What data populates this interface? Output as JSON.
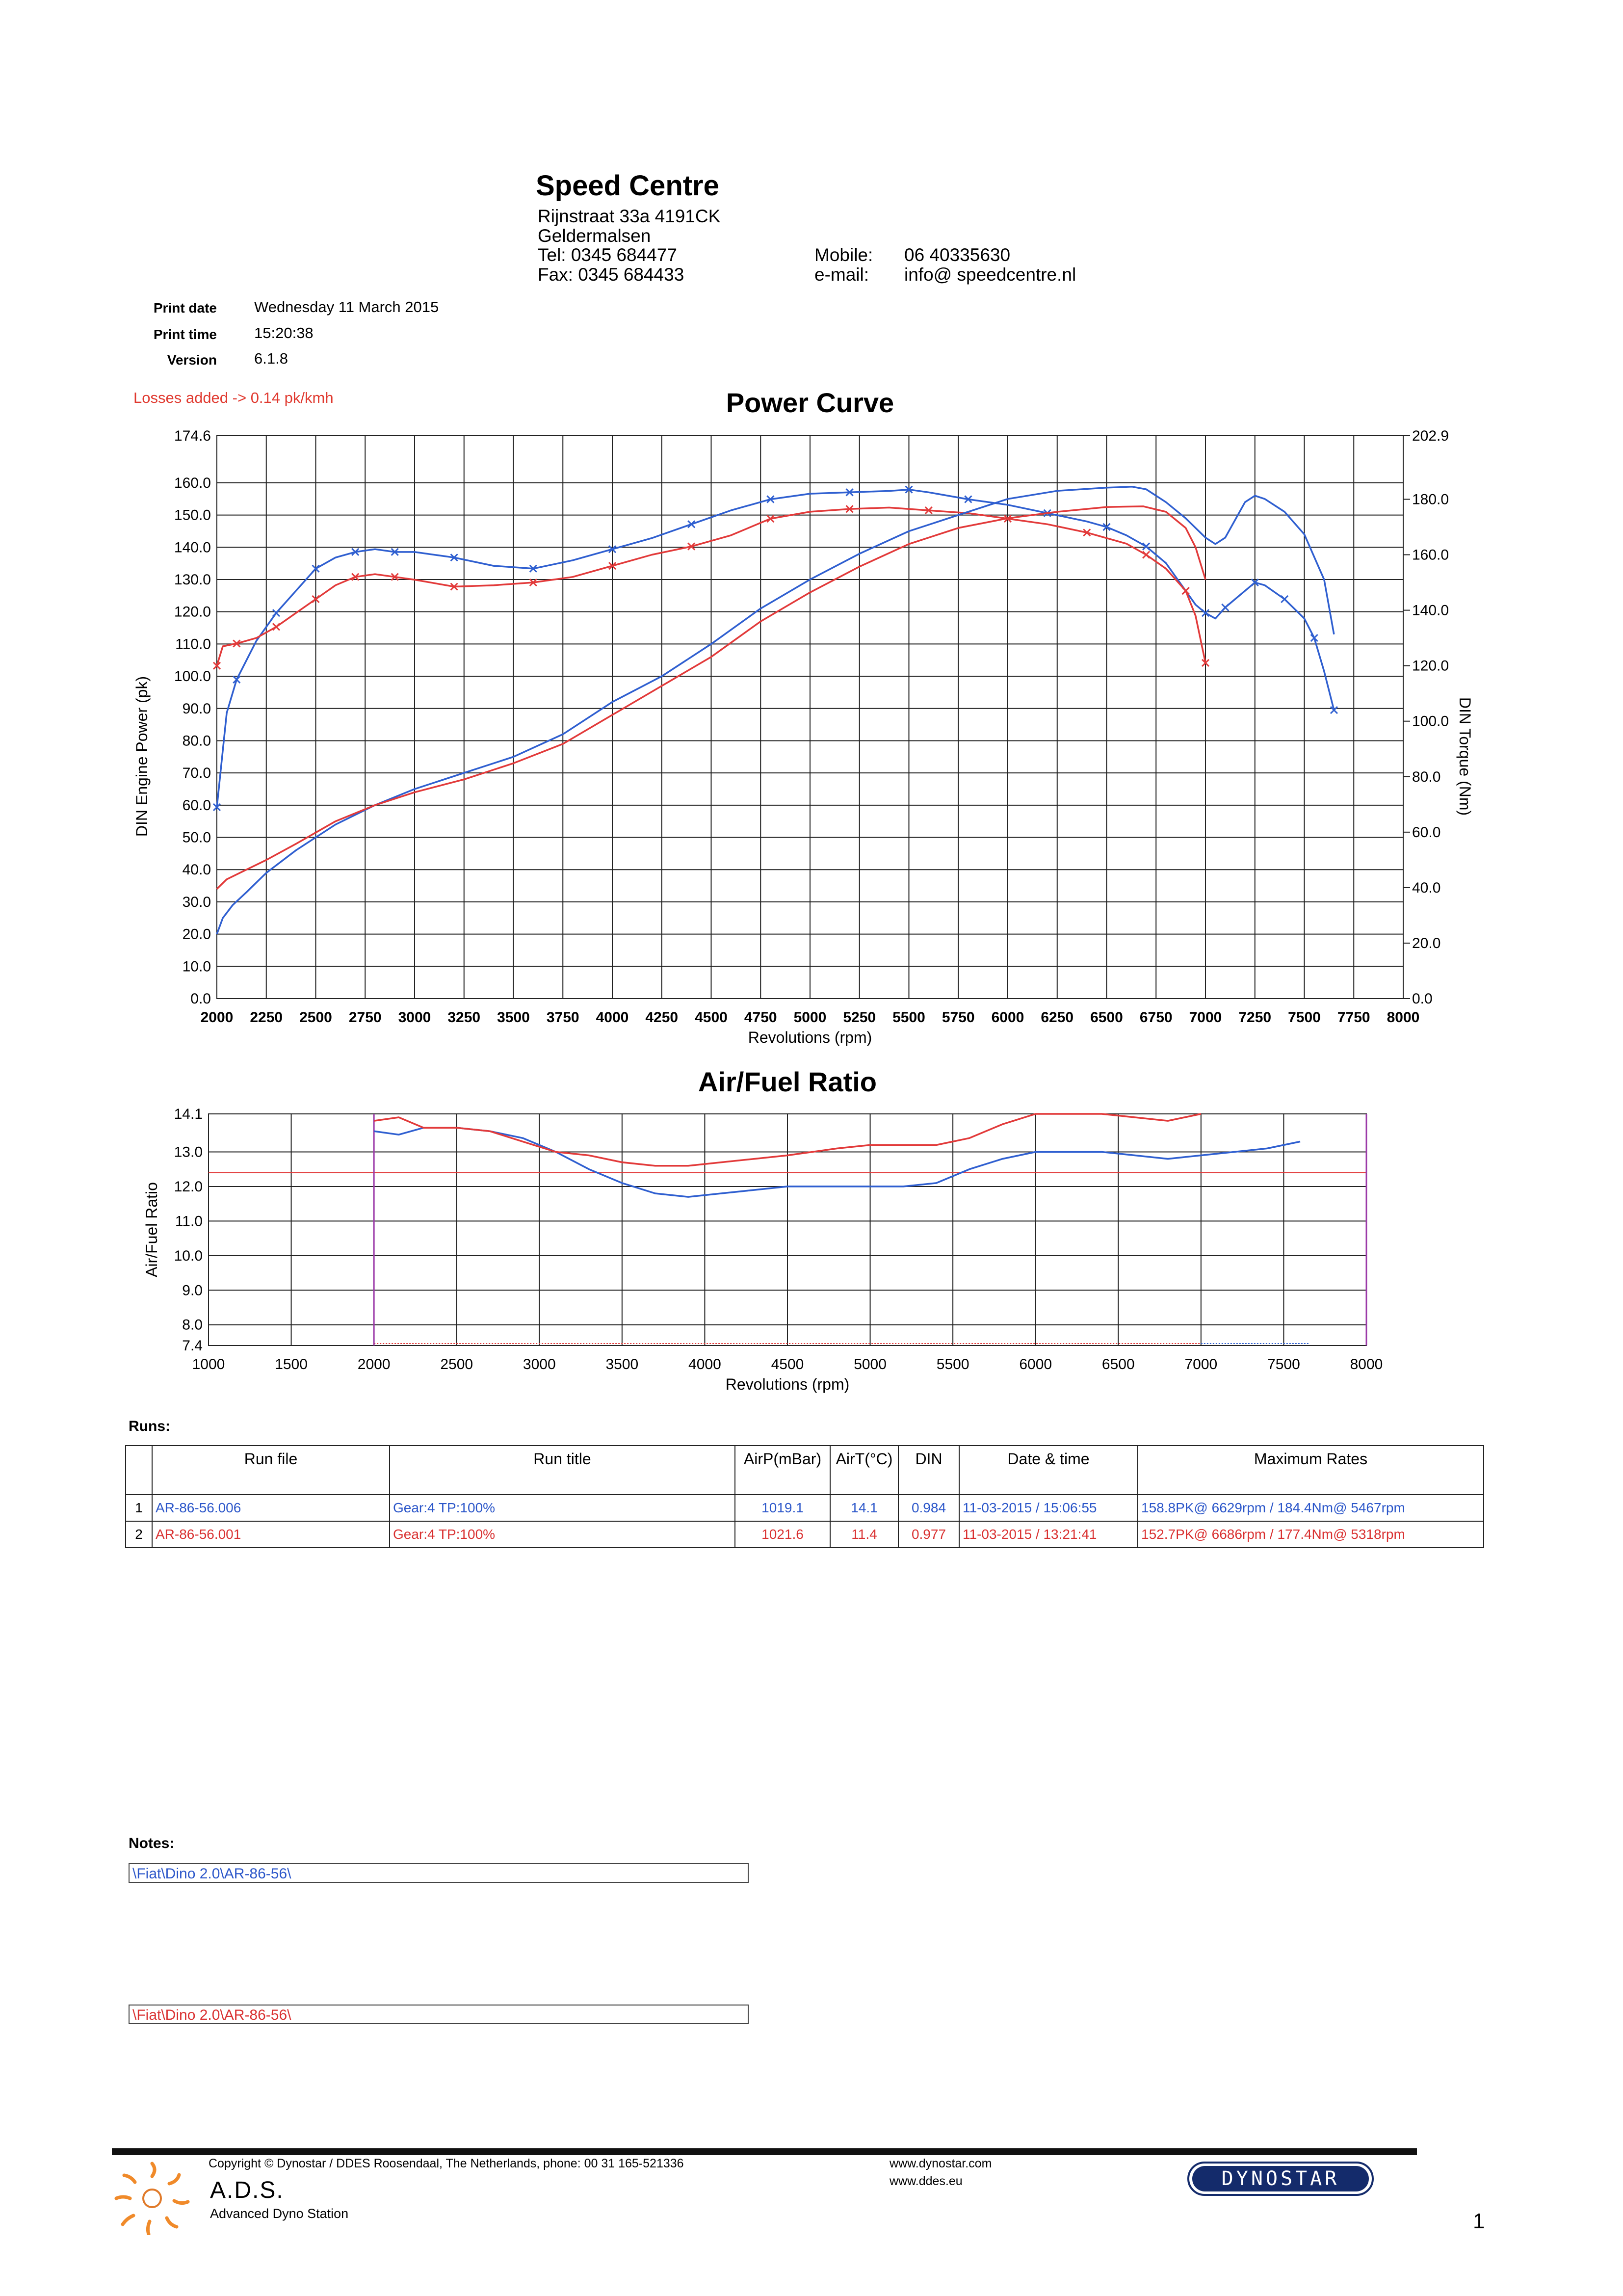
{
  "header": {
    "company": "Speed Centre",
    "address1": "Rijnstraat 33a 4191CK",
    "address2": "Geldermalsen",
    "tel": "Tel:   0345 684477",
    "fax": "Fax:  0345 684433",
    "mobile_label": "Mobile:",
    "mobile": "06 40335630",
    "email_label": "e-mail:",
    "email": "info@ speedcentre.nl"
  },
  "meta": {
    "print_date_label": "Print date",
    "print_date": "Wednesday 11 March 2015",
    "print_time_label": "Print time",
    "print_time": "15:20:38",
    "version_label": "Version",
    "version": "6.1.8"
  },
  "losses_note": "Losses added -> 0.14 pk/kmh",
  "colors": {
    "run1": "#2f5fd0",
    "run2": "#e23a3a"
  },
  "chart_data": [
    {
      "type": "line",
      "title": "Power Curve",
      "xlabel": "Revolutions (rpm)",
      "ylabel": "DIN Engine Power (pk)",
      "y2label": "DIN Torque (Nm)",
      "xlim": [
        2000,
        8000
      ],
      "ylim": [
        0,
        174.6
      ],
      "y2lim": [
        0,
        202.9
      ],
      "x_ticks": [
        2000,
        2250,
        2500,
        2750,
        3000,
        3250,
        3500,
        3750,
        4000,
        4250,
        4500,
        4750,
        5000,
        5250,
        5500,
        5750,
        6000,
        6250,
        6500,
        6750,
        7000,
        7250,
        7500,
        7750,
        8000
      ],
      "y_ticks": [
        "0.0",
        "10.0",
        "20.0",
        "30.0",
        "40.0",
        "50.0",
        "60.0",
        "70.0",
        "80.0",
        "90.0",
        "100.0",
        "110.0",
        "120.0",
        "130.0",
        "140.0",
        "150.0",
        "160.0",
        "174.6"
      ],
      "y2_ticks": [
        "0.0",
        "20.0",
        "40.0",
        "60.0",
        "80.0",
        "100.0",
        "120.0",
        "140.0",
        "160.0",
        "180.0",
        "202.9"
      ],
      "grid": true,
      "series": [
        {
          "axis": "right",
          "marked": true,
          "color": "#2f5fd0",
          "x": [
            2000,
            2050,
            2100,
            2200,
            2300,
            2400,
            2500,
            2600,
            2700,
            2800,
            2900,
            3000,
            3200,
            3400,
            3600,
            3800,
            4000,
            4200,
            4400,
            4600,
            4800,
            5000,
            5200,
            5400,
            5500,
            5600,
            5800,
            6000,
            6200,
            6400,
            6500,
            6600,
            6700,
            6800,
            6900,
            6950,
            7000,
            7050,
            7100,
            7200,
            7250,
            7300,
            7400,
            7500,
            7550,
            7600,
            7650
          ],
          "y": [
            69,
            103,
            115,
            129,
            139,
            147,
            155,
            159,
            161,
            162,
            161,
            161,
            159,
            156,
            155,
            158,
            162,
            166,
            171,
            176,
            180,
            182,
            182.5,
            183,
            183.5,
            182.5,
            180,
            178,
            175,
            172,
            170,
            167,
            163,
            157,
            147,
            142,
            139,
            137,
            141,
            147,
            150,
            149,
            144,
            137,
            130,
            118,
            104
          ]
        },
        {
          "axis": "right",
          "marked": true,
          "color": "#e23a3a",
          "x": [
            2000,
            2030,
            2100,
            2200,
            2300,
            2400,
            2500,
            2600,
            2700,
            2800,
            2900,
            3000,
            3200,
            3400,
            3600,
            3800,
            4000,
            4200,
            4400,
            4600,
            4800,
            5000,
            5200,
            5400,
            5600,
            5800,
            6000,
            6200,
            6400,
            6600,
            6700,
            6800,
            6900,
            6950,
            7000
          ],
          "y": [
            120,
            127,
            128,
            130,
            134,
            139,
            144,
            149,
            152,
            153,
            152,
            151,
            148.5,
            149,
            150,
            152,
            156,
            160,
            163,
            167,
            173,
            175.5,
            176.5,
            177,
            176,
            175,
            173,
            171,
            168,
            164,
            160,
            155,
            147,
            138,
            121
          ]
        },
        {
          "axis": "left",
          "marked": false,
          "color": "#2f5fd0",
          "x": [
            2000,
            2030,
            2080,
            2150,
            2250,
            2400,
            2600,
            2800,
            3000,
            3250,
            3500,
            3750,
            4000,
            4250,
            4500,
            4750,
            5000,
            5250,
            5500,
            5750,
            6000,
            6250,
            6500,
            6629,
            6700,
            6800,
            6900,
            7000,
            7050,
            7100,
            7200,
            7250,
            7300,
            7400,
            7500,
            7600,
            7650
          ],
          "y": [
            20,
            25,
            29,
            33,
            39,
            46,
            54,
            60,
            65,
            70,
            75,
            82,
            92,
            100,
            110,
            121,
            130,
            138,
            145,
            150,
            155,
            157.5,
            158.5,
            158.8,
            158,
            154,
            149,
            143,
            141,
            143,
            154,
            156,
            155,
            151,
            144,
            130,
            113
          ]
        },
        {
          "axis": "left",
          "marked": false,
          "color": "#e23a3a",
          "x": [
            2000,
            2050,
            2150,
            2250,
            2400,
            2600,
            2800,
            3000,
            3250,
            3500,
            3750,
            4000,
            4250,
            4500,
            4750,
            5000,
            5250,
            5500,
            5750,
            6000,
            6250,
            6500,
            6686,
            6800,
            6900,
            6950,
            7000
          ],
          "y": [
            34,
            37,
            40,
            43,
            48,
            55,
            60,
            64,
            68,
            73,
            79,
            88,
            97,
            106,
            117,
            126,
            134,
            141,
            146,
            149,
            151,
            152.5,
            152.7,
            151,
            146,
            140,
            130
          ]
        }
      ]
    },
    {
      "type": "line",
      "title": "Air/Fuel Ratio",
      "xlabel": "Revolutions (rpm)",
      "ylabel": "Air/Fuel Ratio",
      "xlim": [
        1000,
        8000
      ],
      "ylim": [
        7.4,
        14.1
      ],
      "x_ticks": [
        1000,
        1500,
        2000,
        2500,
        3000,
        3500,
        4000,
        4500,
        5000,
        5500,
        6000,
        6500,
        7000,
        7500,
        8000
      ],
      "y_ticks": [
        "7.4",
        "8.0",
        "9.0",
        "10.0",
        "11.0",
        "12.0",
        "13.0",
        "14.1"
      ],
      "grid": true,
      "reference_line": 12.4,
      "series": [
        {
          "color": "#2f5fd0",
          "x": [
            2000,
            2150,
            2300,
            2500,
            2700,
            2900,
            3100,
            3300,
            3500,
            3700,
            3900,
            4100,
            4300,
            4500,
            4800,
            5000,
            5200,
            5400,
            5600,
            5800,
            6000,
            6200,
            6400,
            6600,
            6800,
            7000,
            7200,
            7400,
            7600
          ],
          "y": [
            13.6,
            13.5,
            13.7,
            13.7,
            13.6,
            13.4,
            13.0,
            12.5,
            12.1,
            11.8,
            11.7,
            11.8,
            11.9,
            12.0,
            12.0,
            12.0,
            12.0,
            12.1,
            12.5,
            12.8,
            13.0,
            13.0,
            13.0,
            12.9,
            12.8,
            12.9,
            13.0,
            13.1,
            13.3
          ]
        },
        {
          "color": "#e23a3a",
          "x": [
            2000,
            2150,
            2300,
            2500,
            2700,
            2900,
            3100,
            3300,
            3500,
            3700,
            3900,
            4100,
            4300,
            4500,
            4800,
            5000,
            5200,
            5400,
            5600,
            5800,
            6000,
            6200,
            6400,
            6600,
            6800,
            7000
          ],
          "y": [
            13.9,
            14.0,
            13.7,
            13.7,
            13.6,
            13.3,
            13.0,
            12.9,
            12.7,
            12.6,
            12.6,
            12.7,
            12.8,
            12.9,
            13.1,
            13.2,
            13.2,
            13.2,
            13.4,
            13.8,
            14.1,
            14.1,
            14.1,
            14.0,
            13.9,
            14.1
          ]
        }
      ]
    }
  ],
  "runs": {
    "label": "Runs:",
    "headers": [
      "Run file",
      "Run title",
      "AirP(mBar)",
      "AirT(°C)",
      "DIN",
      "Date & time",
      "Maximum Rates"
    ],
    "rows": [
      {
        "num": "1",
        "file": "AR-86-56.006",
        "title": "Gear:4 TP:100%",
        "airp": "1019.1",
        "airt": "14.1",
        "din": "0.984",
        "date": "11-03-2015 / 15:06:55",
        "max": "158.8PK@ 6629rpm / 184.4Nm@ 5467rpm"
      },
      {
        "num": "2",
        "file": "AR-86-56.001",
        "title": "Gear:4 TP:100%",
        "airp": "1021.6",
        "airt": "11.4",
        "din": "0.977",
        "date": "11-03-2015 / 13:21:41",
        "max": "152.7PK@ 6686rpm / 177.4Nm@ 5318rpm"
      }
    ]
  },
  "notes": {
    "label": "Notes:",
    "note1": "\\Fiat\\Dino 2.0\\AR-86-56\\",
    "note2": "\\Fiat\\Dino 2.0\\AR-86-56\\"
  },
  "footer": {
    "copyright": "Copyright ©  Dynostar / DDES  Roosendaal, The Netherlands, phone: 00 31 165-521336",
    "web1": "www.dynostar.com",
    "web2": "www.ddes.eu",
    "ads": "A.D.S.",
    "ads_sub": "Advanced Dyno Station",
    "brand": "DYNOSTAR",
    "page": "1"
  }
}
